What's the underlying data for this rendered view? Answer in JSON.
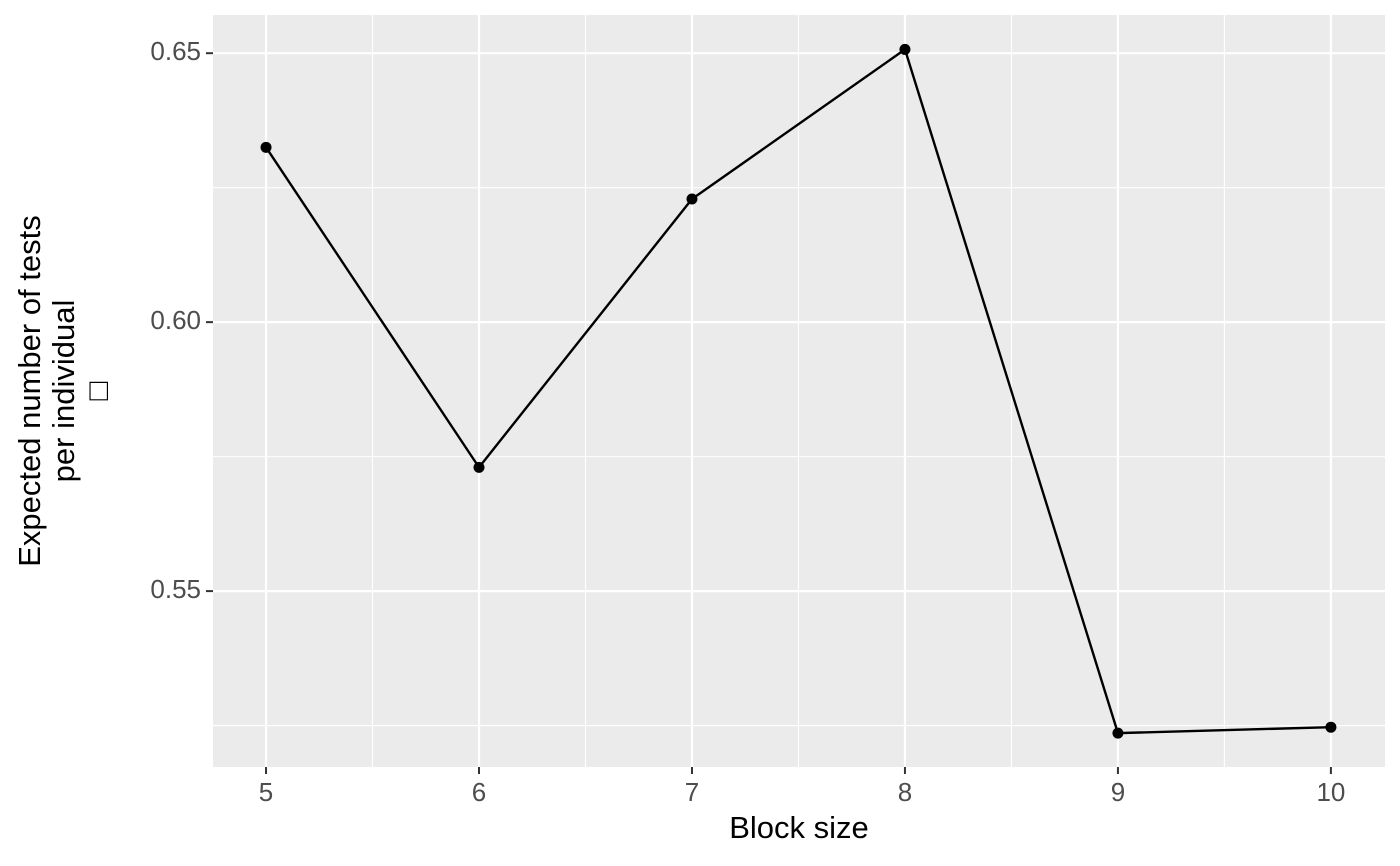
{
  "chart_data": {
    "type": "line",
    "xlabel": "Block size",
    "ylabel": [
      "Expected number of tests",
      "per individual",
      "□"
    ],
    "x": [
      5,
      6,
      7,
      8,
      9,
      10
    ],
    "series": [
      {
        "color": "#000000",
        "values": [
          0.6325,
          0.573,
          0.6229,
          0.6507,
          0.5236,
          0.5247
        ]
      }
    ],
    "xlim": [
      4.751,
      10.254
    ],
    "xticks": [
      5,
      6,
      7,
      8,
      9,
      10
    ],
    "ylim": [
      0.5173,
      0.6571
    ],
    "yticks": [
      {
        "value": 0.55,
        "label": "0.55"
      },
      {
        "value": 0.6,
        "label": "0.60"
      },
      {
        "value": 0.65,
        "label": "0.65"
      }
    ],
    "grid": true
  }
}
